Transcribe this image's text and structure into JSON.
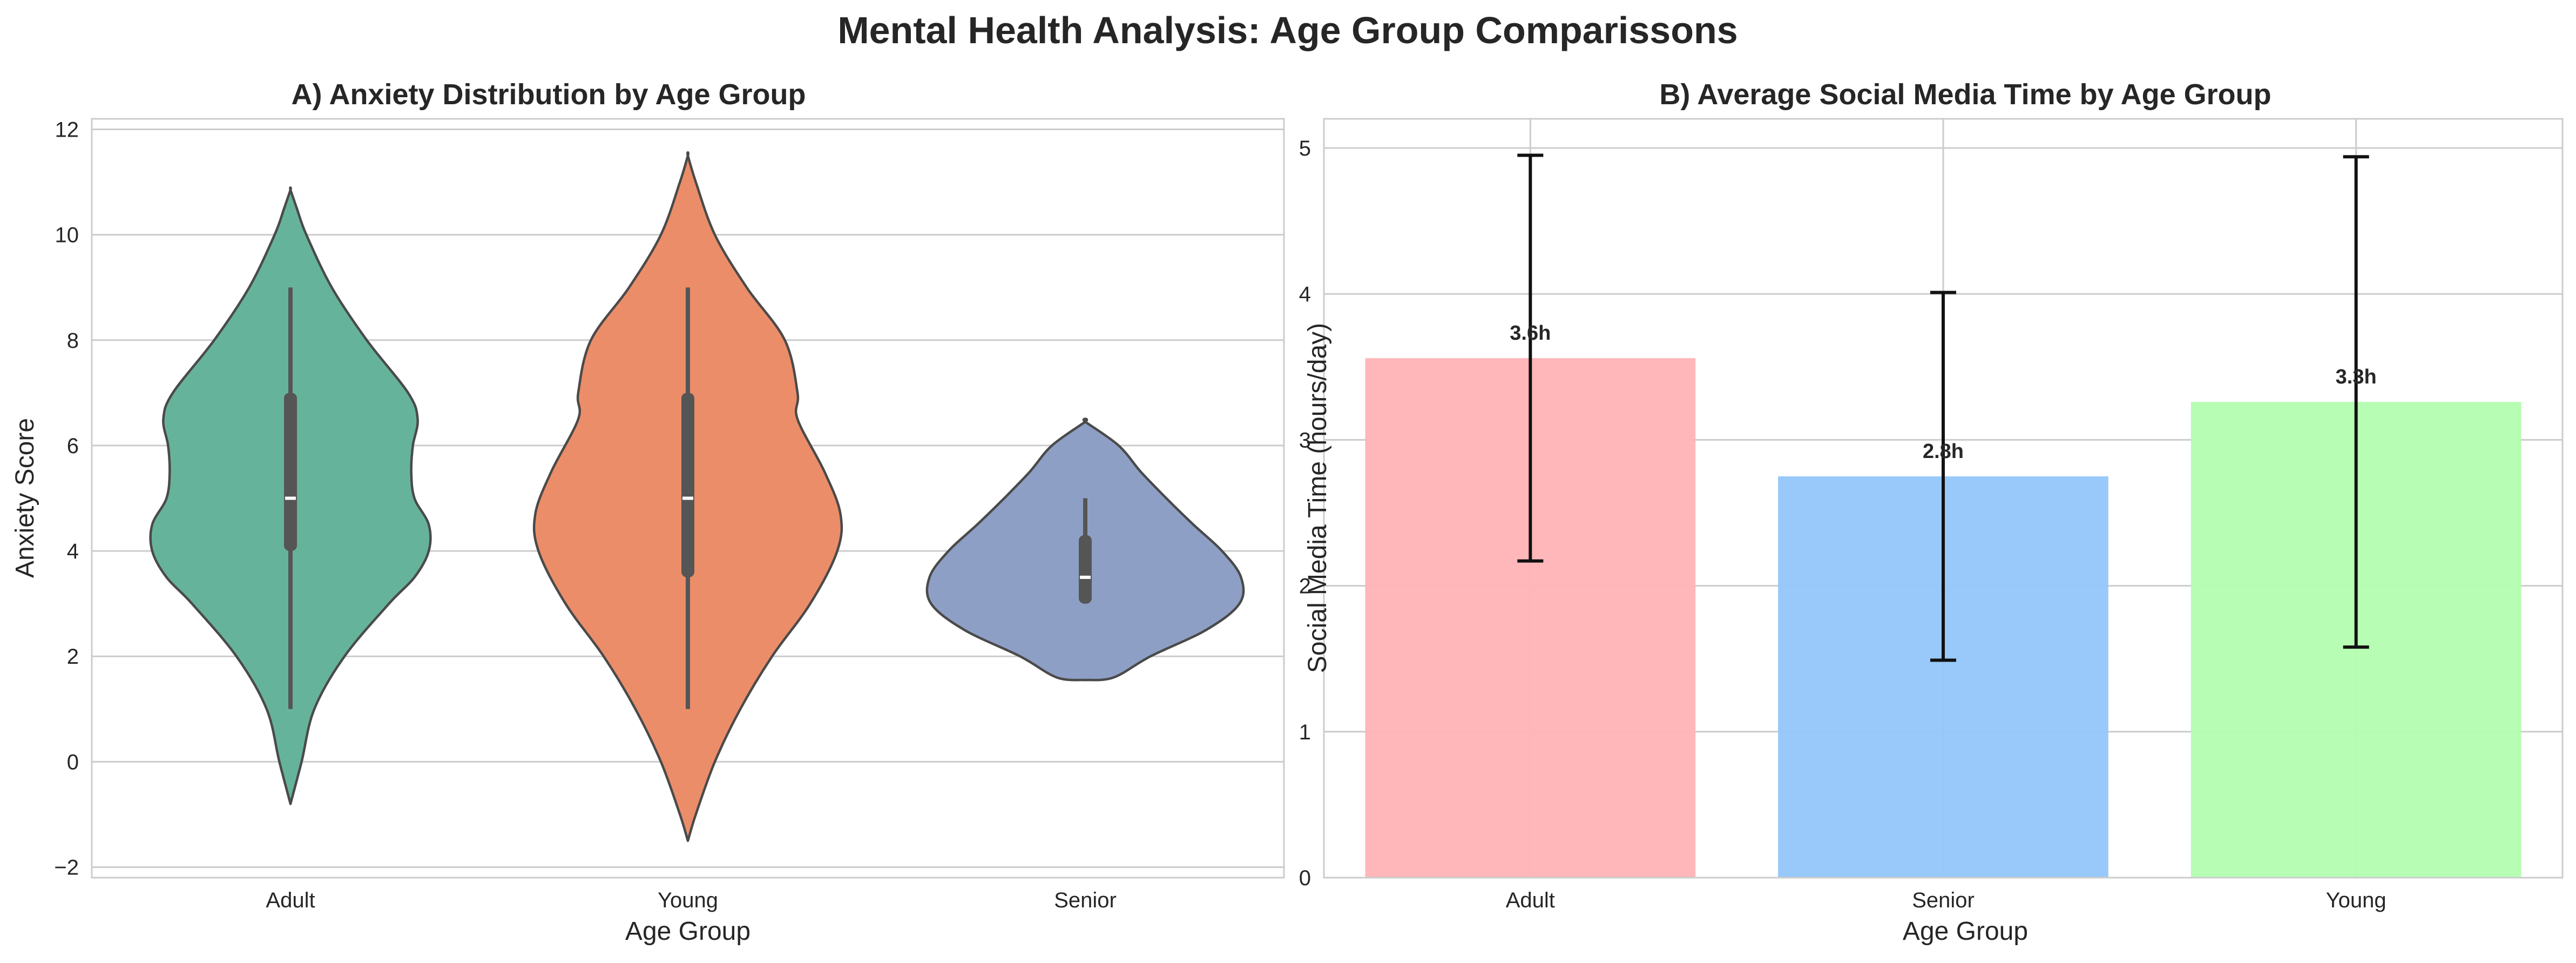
{
  "figure": {
    "title": "Mental Health Analysis: Age Group Comparissons"
  },
  "chart_data": [
    {
      "type": "violin",
      "title": "A) Anxiety Distribution by Age Group",
      "xlabel": "Age Group",
      "ylabel": "Anxiety Score",
      "categories": [
        "Adult",
        "Young",
        "Senior"
      ],
      "ylim": [
        -2.2,
        12.2
      ],
      "yticks": [
        -2,
        0,
        2,
        4,
        6,
        8,
        10,
        12
      ],
      "ytick_labels": [
        "−2",
        "0",
        "2",
        "4",
        "6",
        "8",
        "10",
        "12"
      ],
      "grid": true,
      "violins": [
        {
          "category": "Adult",
          "color": "#66b39b",
          "median": 5,
          "q1": 4,
          "q3": 7,
          "whisker_low": 1,
          "whisker_high": 9,
          "profile": [
            [
              -0.8,
              0.0
            ],
            [
              0.0,
              0.07
            ],
            [
              1.0,
              0.15
            ],
            [
              2.0,
              0.34
            ],
            [
              3.0,
              0.62
            ],
            [
              3.5,
              0.78
            ],
            [
              4.0,
              0.87
            ],
            [
              4.5,
              0.87
            ],
            [
              5.0,
              0.78
            ],
            [
              5.5,
              0.76
            ],
            [
              6.0,
              0.77
            ],
            [
              6.5,
              0.8
            ],
            [
              7.0,
              0.74
            ],
            [
              8.0,
              0.48
            ],
            [
              9.0,
              0.26
            ],
            [
              10.0,
              0.1
            ],
            [
              10.5,
              0.04
            ],
            [
              10.85,
              0.0
            ]
          ]
        },
        {
          "category": "Young",
          "color": "#ec8d69",
          "median": 5,
          "q1": 3.5,
          "q3": 7,
          "whisker_low": 1,
          "whisker_high": 9,
          "profile": [
            [
              -1.5,
              0.0
            ],
            [
              -1.0,
              0.05
            ],
            [
              0.0,
              0.17
            ],
            [
              1.0,
              0.33
            ],
            [
              2.0,
              0.53
            ],
            [
              3.0,
              0.77
            ],
            [
              4.0,
              0.94
            ],
            [
              4.7,
              0.96
            ],
            [
              5.5,
              0.86
            ],
            [
              6.5,
              0.69
            ],
            [
              7.0,
              0.69
            ],
            [
              8.0,
              0.61
            ],
            [
              9.0,
              0.37
            ],
            [
              10.0,
              0.17
            ],
            [
              11.0,
              0.05
            ],
            [
              11.5,
              0.0
            ]
          ]
        },
        {
          "category": "Senior",
          "color": "#8e9fc5",
          "median": 3.5,
          "q1": 3,
          "q3": 4.3,
          "whisker_low": 3,
          "whisker_high": 5,
          "profile": [
            [
              1.55,
              0.0
            ],
            [
              1.6,
              0.18
            ],
            [
              2.0,
              0.41
            ],
            [
              2.5,
              0.76
            ],
            [
              3.0,
              0.97
            ],
            [
              3.5,
              0.98
            ],
            [
              4.0,
              0.86
            ],
            [
              4.5,
              0.68
            ],
            [
              5.0,
              0.51
            ],
            [
              5.5,
              0.35
            ],
            [
              6.0,
              0.21
            ],
            [
              6.45,
              0.0
            ]
          ]
        }
      ]
    },
    {
      "type": "bar",
      "title": "B) Average Social Media Time by Age Group",
      "xlabel": "Age Group",
      "ylabel": "Social Media Time (hours/day)",
      "categories": [
        "Adult",
        "Senior",
        "Young"
      ],
      "values": [
        3.56,
        2.75,
        3.26
      ],
      "value_labels": [
        "3.6h",
        "2.8h",
        "3.3h"
      ],
      "error_low": [
        2.17,
        1.49,
        1.58
      ],
      "error_high": [
        4.95,
        4.01,
        4.94
      ],
      "colors": [
        "#ffb3b6",
        "#92c6fa",
        "#b3fdaf"
      ],
      "ylim": [
        0,
        5.2
      ],
      "yticks": [
        0,
        1,
        2,
        3,
        4,
        5
      ],
      "ytick_labels": [
        "0",
        "1",
        "2",
        "3",
        "4",
        "5"
      ],
      "grid": true
    }
  ]
}
